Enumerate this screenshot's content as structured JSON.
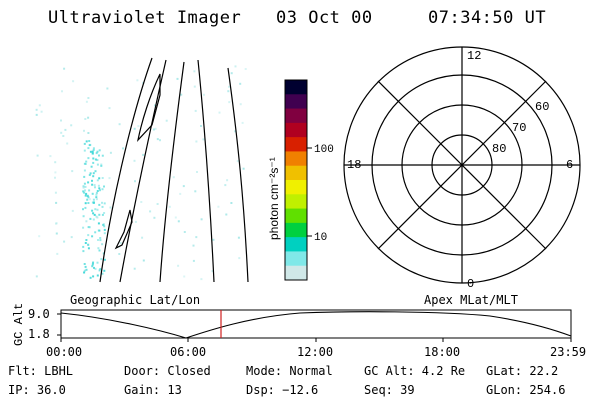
{
  "header": {
    "instrument": "Ultraviolet Imager",
    "date": "03 Oct 00",
    "time": "07:34:50 UT"
  },
  "colorbar": {
    "label": "photon cm⁻²s⁻¹",
    "ticks": [
      "100",
      "10"
    ],
    "scale": "log",
    "colors": [
      "#000030",
      "#400050",
      "#800040",
      "#b00020",
      "#d82000",
      "#f08000",
      "#f0c000",
      "#f0f000",
      "#c0f000",
      "#60e000",
      "#00d040",
      "#00d0c0",
      "#80e8e8",
      "#d0e8e8"
    ]
  },
  "map": {
    "label": "Geographic Lat/Lon"
  },
  "polar": {
    "label": "Apex MLat/MLT",
    "hour_labels": {
      "top": "12",
      "bottom": "0",
      "left": "18",
      "right": "6"
    },
    "lat_labels": [
      "60",
      "70",
      "80"
    ]
  },
  "timeline": {
    "axis_label": "GC Alt",
    "y_ticks": [
      "9.0",
      "1.8"
    ],
    "x_ticks": [
      "00:00",
      "06:00",
      "12:00",
      "18:00",
      "23:59"
    ],
    "marker_color": "#d02020"
  },
  "info": {
    "flt": "Flt: LBHL",
    "ip": "IP: 36.0",
    "door": "Door: Closed",
    "gain": "Gain: 13",
    "mode": "Mode: Normal",
    "dsp": "Dsp:  −12.6",
    "gcalt": "GC Alt: 4.2 Re",
    "seq": "Seq: 39",
    "glat": "GLat:  22.2",
    "glon": "GLon: 254.6"
  }
}
